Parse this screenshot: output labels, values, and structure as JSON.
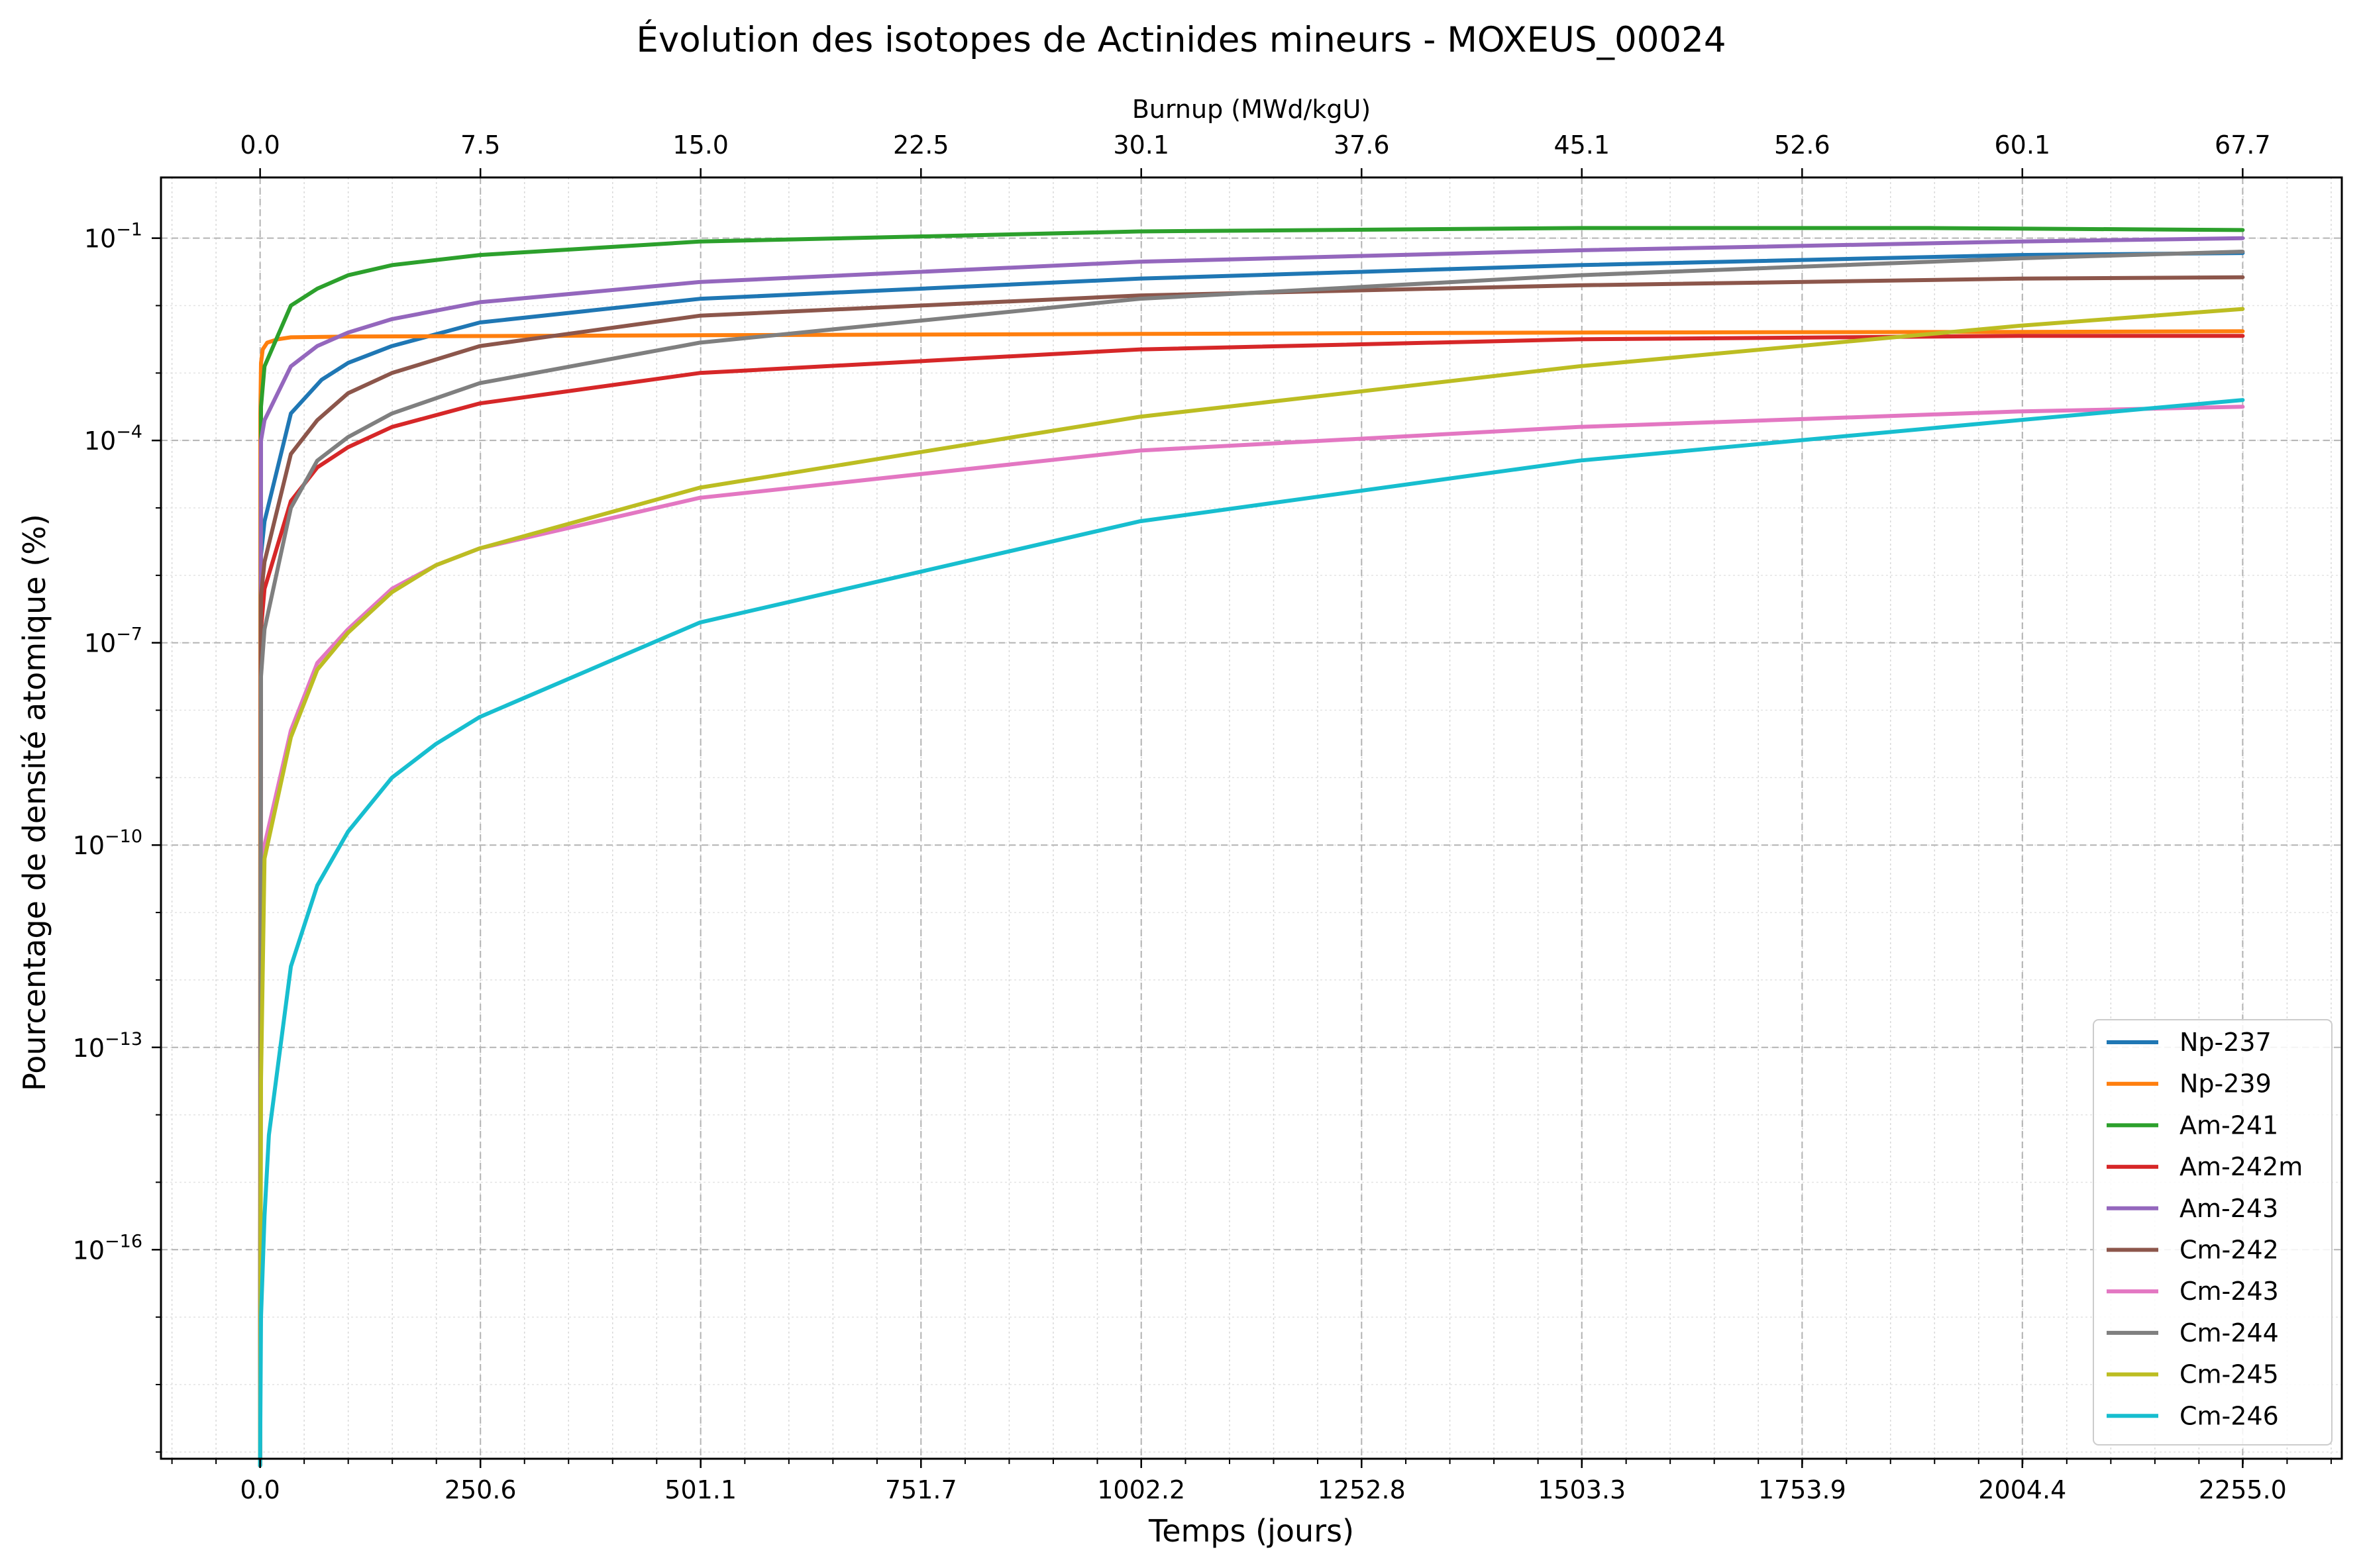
{
  "chart_data": {
    "type": "line",
    "title": "Évolution des isotopes de Actinides mineurs - MOXEUS_00024",
    "xlabel": "Temps (jours)",
    "ylabel": "Pourcentage de densité atomique (%)",
    "top_xlabel": "Burnup (MWd/kgU)",
    "x_scale": "linear",
    "y_scale": "log",
    "xlim": [
      -112.75,
      2367.75
    ],
    "ylim_log10": [
      -19.1,
      -0.1
    ],
    "grid": true,
    "legend_position": "lower right",
    "x_ticks": [
      {
        "value": 0.0,
        "label": "0.0"
      },
      {
        "value": 250.6,
        "label": "250.6"
      },
      {
        "value": 501.1,
        "label": "501.1"
      },
      {
        "value": 751.7,
        "label": "751.7"
      },
      {
        "value": 1002.2,
        "label": "1002.2"
      },
      {
        "value": 1252.8,
        "label": "1252.8"
      },
      {
        "value": 1503.3,
        "label": "1503.3"
      },
      {
        "value": 1753.9,
        "label": "1753.9"
      },
      {
        "value": 2004.4,
        "label": "2004.4"
      },
      {
        "value": 2255.0,
        "label": "2255.0"
      }
    ],
    "top_x_ticks": [
      {
        "value": 0.0,
        "label": "0.0"
      },
      {
        "value": 250.6,
        "label": "7.5"
      },
      {
        "value": 501.1,
        "label": "15.0"
      },
      {
        "value": 751.7,
        "label": "22.5"
      },
      {
        "value": 1002.2,
        "label": "30.1"
      },
      {
        "value": 1252.8,
        "label": "37.6"
      },
      {
        "value": 1503.3,
        "label": "45.1"
      },
      {
        "value": 1753.9,
        "label": "52.6"
      },
      {
        "value": 2004.4,
        "label": "60.1"
      },
      {
        "value": 2255.0,
        "label": "67.7"
      }
    ],
    "y_ticks": [
      {
        "exp": -1,
        "base": "10",
        "sup": "−1"
      },
      {
        "exp": -4,
        "base": "10",
        "sup": "−4"
      },
      {
        "exp": -7,
        "base": "10",
        "sup": "−7"
      },
      {
        "exp": -10,
        "base": "10",
        "sup": "−10"
      },
      {
        "exp": -13,
        "base": "10",
        "sup": "−13"
      },
      {
        "exp": -16,
        "base": "10",
        "sup": "−16"
      }
    ],
    "series": [
      {
        "name": "Np-237",
        "color": "#1f77b4",
        "x": [
          0,
          1,
          5,
          35,
          70,
          100,
          150,
          250,
          500,
          1000,
          1500,
          2000,
          2255
        ],
        "log10_y": [
          -19.2,
          -5.7,
          -5.2,
          -3.6,
          -3.1,
          -2.85,
          -2.6,
          -2.25,
          -1.9,
          -1.6,
          -1.4,
          -1.25,
          -1.22
        ]
      },
      {
        "name": "Np-239",
        "color": "#ff7f0e",
        "x": [
          0,
          0.3,
          1,
          3,
          8,
          20,
          35,
          100,
          500,
          1000,
          1500,
          2000,
          2255
        ],
        "log10_y": [
          -19.2,
          -3.6,
          -2.85,
          -2.65,
          -2.55,
          -2.5,
          -2.47,
          -2.46,
          -2.44,
          -2.42,
          -2.4,
          -2.39,
          -2.38
        ]
      },
      {
        "name": "Am-241",
        "color": "#2ca02c",
        "x": [
          0,
          1,
          5,
          35,
          65,
          100,
          150,
          250,
          500,
          1000,
          1500,
          1900,
          2255
        ],
        "log10_y": [
          -19.2,
          -3.5,
          -2.9,
          -2.0,
          -1.75,
          -1.55,
          -1.4,
          -1.25,
          -1.05,
          -0.9,
          -0.85,
          -0.85,
          -0.88
        ]
      },
      {
        "name": "Am-242m",
        "color": "#d62728",
        "x": [
          0,
          1,
          5,
          35,
          65,
          100,
          150,
          250,
          500,
          1000,
          1500,
          2000,
          2255
        ],
        "log10_y": [
          -19.2,
          -6.8,
          -6.2,
          -4.9,
          -4.4,
          -4.1,
          -3.8,
          -3.45,
          -3.0,
          -2.65,
          -2.5,
          -2.45,
          -2.45
        ]
      },
      {
        "name": "Am-243",
        "color": "#9467bd",
        "x": [
          0,
          1,
          5,
          35,
          65,
          100,
          150,
          250,
          500,
          1000,
          1500,
          2000,
          2255
        ],
        "log10_y": [
          -19.2,
          -4.0,
          -3.7,
          -2.9,
          -2.6,
          -2.4,
          -2.2,
          -1.95,
          -1.65,
          -1.35,
          -1.18,
          -1.05,
          -1.0
        ]
      },
      {
        "name": "Cm-242",
        "color": "#8c564b",
        "x": [
          0,
          1,
          5,
          35,
          65,
          100,
          150,
          250,
          500,
          1000,
          1500,
          2000,
          2255
        ],
        "log10_y": [
          -19.2,
          -6.3,
          -5.8,
          -4.2,
          -3.7,
          -3.3,
          -3.0,
          -2.6,
          -2.15,
          -1.85,
          -1.7,
          -1.6,
          -1.58
        ]
      },
      {
        "name": "Cm-243",
        "color": "#e377c2",
        "x": [
          0,
          1,
          5,
          35,
          65,
          100,
          150,
          200,
          250,
          500,
          1000,
          1500,
          2000,
          2255
        ],
        "log10_y": [
          -19.2,
          -13.0,
          -10.0,
          -8.3,
          -7.3,
          -6.8,
          -6.2,
          -5.85,
          -5.6,
          -4.85,
          -4.15,
          -3.8,
          -3.57,
          -3.5
        ]
      },
      {
        "name": "Cm-244",
        "color": "#7f7f7f",
        "x": [
          0,
          1,
          5,
          35,
          65,
          100,
          150,
          250,
          500,
          1000,
          1500,
          2000,
          2255
        ],
        "log10_y": [
          -19.2,
          -7.5,
          -6.8,
          -5.0,
          -4.3,
          -3.95,
          -3.6,
          -3.15,
          -2.55,
          -1.9,
          -1.55,
          -1.3,
          -1.2
        ]
      },
      {
        "name": "Cm-245",
        "color": "#bcbd22",
        "x": [
          0,
          1,
          5,
          35,
          65,
          100,
          150,
          200,
          250,
          500,
          1000,
          1500,
          2000,
          2255
        ],
        "log10_y": [
          -19.2,
          -13.5,
          -10.2,
          -8.4,
          -7.4,
          -6.85,
          -6.25,
          -5.85,
          -5.6,
          -4.7,
          -3.65,
          -2.9,
          -2.3,
          -2.05
        ]
      },
      {
        "name": "Cm-246",
        "color": "#17becf",
        "x": [
          0,
          1,
          5,
          10,
          35,
          65,
          100,
          150,
          200,
          250,
          500,
          1000,
          1500,
          2000,
          2255
        ],
        "log10_y": [
          -19.2,
          -17.0,
          -15.5,
          -14.3,
          -11.8,
          -10.6,
          -9.8,
          -9.0,
          -8.5,
          -8.1,
          -6.7,
          -5.2,
          -4.3,
          -3.7,
          -3.4
        ]
      }
    ]
  }
}
